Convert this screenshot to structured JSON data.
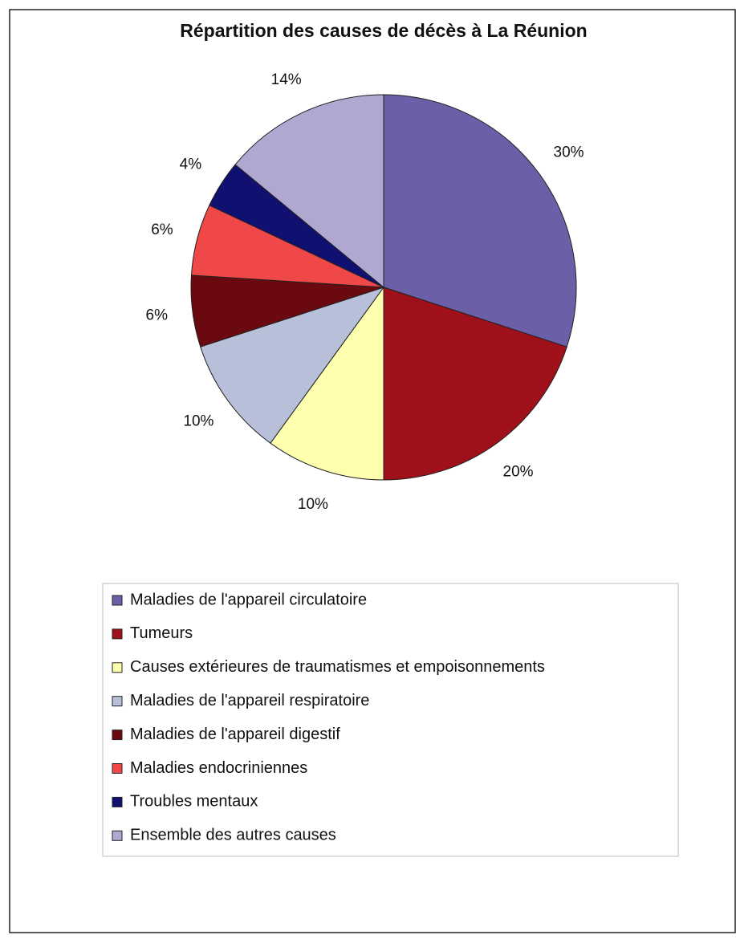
{
  "chart_data": {
    "type": "pie",
    "title": "Répartition des causes de décès à La Réunion",
    "categories": [
      "Maladies de l'appareil circulatoire",
      "Tumeurs",
      "Causes extérieures de traumatismes et empoisonnements",
      "Maladies de l'appareil respiratoire",
      "Maladies de l'appareil digestif",
      "Maladies endocriniennes",
      "Troubles mentaux",
      "Ensemble des autres causes"
    ],
    "values": [
      30,
      20,
      10,
      10,
      6,
      6,
      4,
      14
    ],
    "value_labels": [
      "30%",
      "20%",
      "10%",
      "10%",
      "6%",
      "6%",
      "4%",
      "14%"
    ],
    "colors": [
      "#6b5fa8",
      "#a0101a",
      "#ffffb0",
      "#b8bfd8",
      "#6a0a10",
      "#f04848",
      "#101070",
      "#b0a8d0"
    ],
    "legend": "bottom"
  }
}
